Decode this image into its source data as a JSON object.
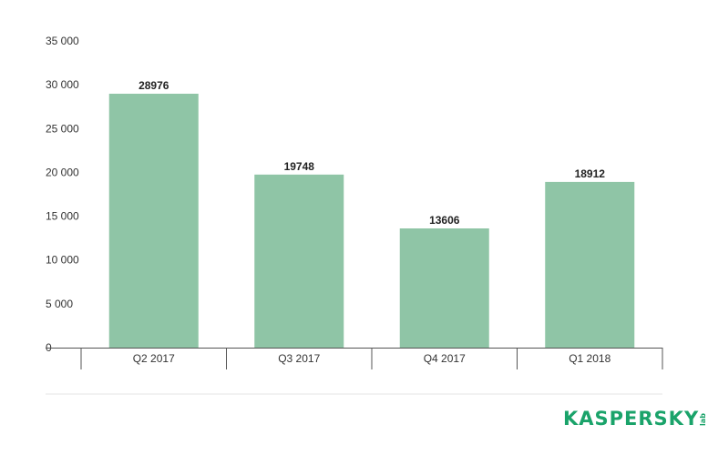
{
  "chart_data": {
    "type": "bar",
    "categories": [
      "Q2 2017",
      "Q3 2017",
      "Q4 2017",
      "Q1 2018"
    ],
    "values": [
      28976,
      19748,
      13606,
      18912
    ],
    "data_labels": [
      "28976",
      "19748",
      "13606",
      "18912"
    ],
    "ylim": [
      0,
      35000
    ],
    "yticks": [
      0,
      5000,
      10000,
      15000,
      20000,
      25000,
      30000,
      35000
    ],
    "ytick_labels": [
      "0",
      "5 000",
      "10 000",
      "15 000",
      "20 000",
      "25 000",
      "30 000",
      "35 000"
    ],
    "grid": false,
    "bar_color": "#8fc5a6"
  },
  "brand": {
    "logo_text": "KASPERSKY",
    "logo_sub": "lab",
    "logo_color": "#1aa36a"
  }
}
